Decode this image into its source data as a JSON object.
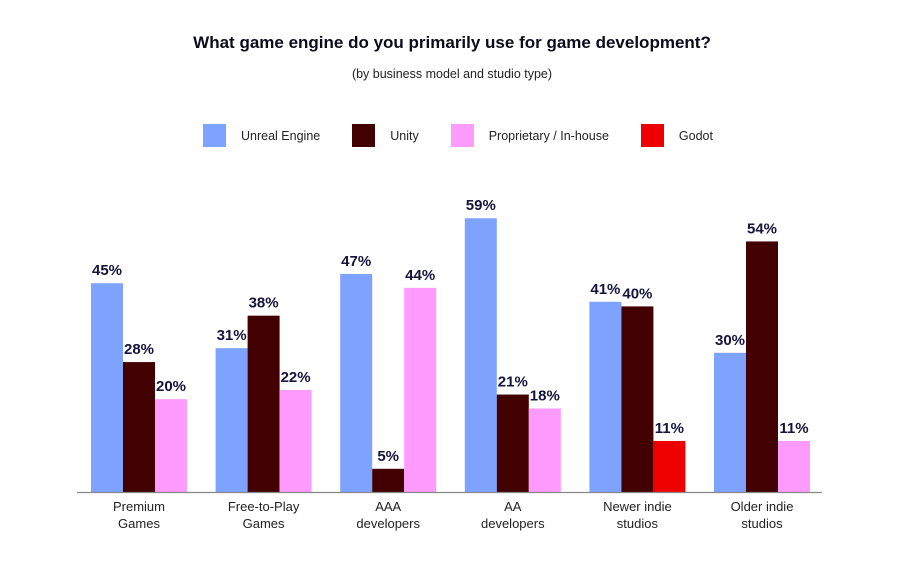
{
  "chart_data": {
    "type": "bar",
    "title": "What game engine do you primarily use for game development?",
    "subtitle": "(by business model and studio type)",
    "categories": [
      "Premium Games",
      "Free-to-Play Games",
      "AAA developers",
      "AA developers",
      "Newer indie studios",
      "Older indie studios"
    ],
    "category_lines": [
      [
        "Premium",
        "Games"
      ],
      [
        "Free-to-Play",
        "Games"
      ],
      [
        "AAA",
        "developers"
      ],
      [
        "AA",
        "developers"
      ],
      [
        "Newer indie",
        "studios"
      ],
      [
        "Older indie",
        "studios"
      ]
    ],
    "series": [
      {
        "name": "Unreal Engine",
        "color": "#7ea3ff",
        "values": [
          45,
          31,
          47,
          59,
          41,
          30
        ]
      },
      {
        "name": "Unity",
        "color": "#420000",
        "values": [
          28,
          38,
          5,
          21,
          40,
          54
        ]
      },
      {
        "name": "Proprietary / In-house",
        "color": "#ff9bff",
        "values": [
          20,
          22,
          44,
          18,
          null,
          11
        ]
      },
      {
        "name": "Godot",
        "color": "#ee0000",
        "values": [
          null,
          null,
          null,
          null,
          11,
          null
        ]
      }
    ],
    "value_suffix": "%",
    "legend_position": "top",
    "grid": false,
    "ylim": [
      0,
      60
    ]
  }
}
